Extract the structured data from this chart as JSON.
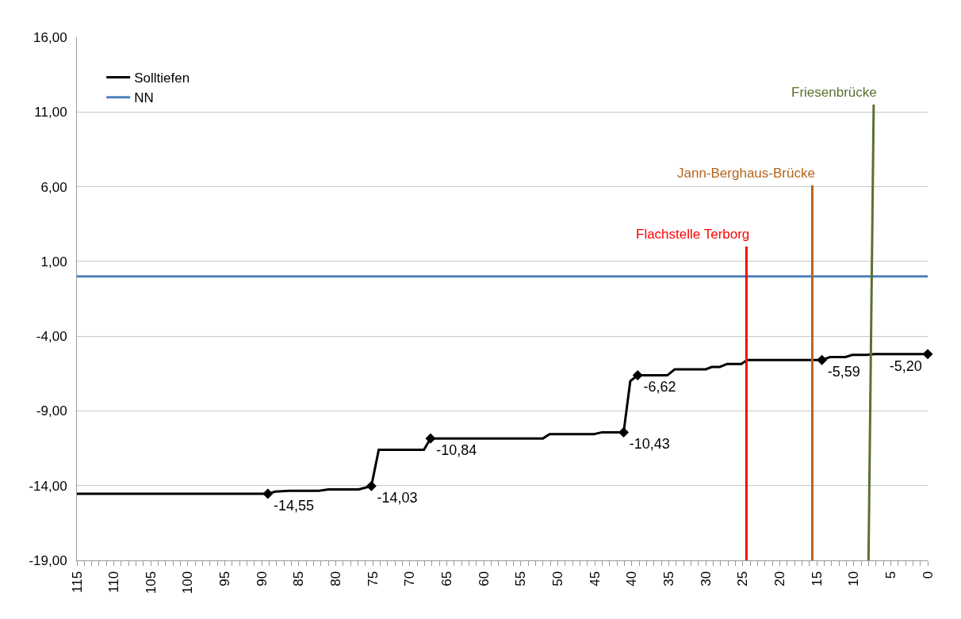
{
  "chart_data": {
    "type": "line",
    "legend": "top left",
    "grid": "y",
    "line_style": "solid",
    "x": [
      115,
      89.2,
      88.2,
      86.3,
      82.3,
      81,
      76.9,
      75.2,
      74.2,
      68.1,
      67.2,
      52,
      51.1,
      45.1,
      44,
      41.1,
      40.2,
      39.2,
      35.2,
      34.2,
      30,
      29.2,
      28.1,
      27.1,
      25.2,
      24.4,
      14.3,
      13.2,
      11.1,
      10.2,
      8.3,
      7.2,
      0
    ],
    "xlim": [
      115,
      0
    ],
    "xticks": [
      0,
      {
        "value": 1,
        "label": null
      },
      {
        "value": 2,
        "label": null
      },
      {
        "value": 3,
        "label": null
      },
      {
        "value": 4,
        "label": null
      },
      5,
      {
        "value": 6,
        "label": null
      },
      {
        "value": 7,
        "label": null
      },
      {
        "value": 8,
        "label": null
      },
      {
        "value": 9,
        "label": null
      },
      10,
      {
        "value": 11,
        "label": null
      },
      {
        "value": 12,
        "label": null
      },
      {
        "value": 13,
        "label": null
      },
      {
        "value": 14,
        "label": null
      },
      15,
      {
        "value": 16,
        "label": null
      },
      {
        "value": 17,
        "label": null
      },
      {
        "value": 18,
        "label": null
      },
      {
        "value": 19,
        "label": null
      },
      20,
      {
        "value": 21,
        "label": null
      },
      {
        "value": 22,
        "label": null
      },
      {
        "value": 23,
        "label": null
      },
      {
        "value": 24,
        "label": null
      },
      25,
      {
        "value": 26,
        "label": null
      },
      {
        "value": 27,
        "label": null
      },
      {
        "value": 28,
        "label": null
      },
      {
        "value": 29,
        "label": null
      },
      30,
      {
        "value": 31,
        "label": null
      },
      {
        "value": 32,
        "label": null
      },
      {
        "value": 33,
        "label": null
      },
      {
        "value": 34,
        "label": null
      },
      35,
      {
        "value": 36,
        "label": null
      },
      {
        "value": 37,
        "label": null
      },
      {
        "value": 38,
        "label": null
      },
      {
        "value": 39,
        "label": null
      },
      40,
      {
        "value": 41,
        "label": null
      },
      {
        "value": 42,
        "label": null
      },
      {
        "value": 43,
        "label": null
      },
      {
        "value": 44,
        "label": null
      },
      45,
      {
        "value": 46,
        "label": null
      },
      {
        "value": 47,
        "label": null
      },
      {
        "value": 48,
        "label": null
      },
      {
        "value": 49,
        "label": null
      },
      50,
      {
        "value": 51,
        "label": null
      },
      {
        "value": 52,
        "label": null
      },
      {
        "value": 53,
        "label": null
      },
      {
        "value": 54,
        "label": null
      },
      55,
      {
        "value": 56,
        "label": null
      },
      {
        "value": 57,
        "label": null
      },
      {
        "value": 58,
        "label": null
      },
      {
        "value": 59,
        "label": null
      },
      60,
      {
        "value": 61,
        "label": null
      },
      {
        "value": 62,
        "label": null
      },
      {
        "value": 63,
        "label": null
      },
      {
        "value": 64,
        "label": null
      },
      65,
      {
        "value": 66,
        "label": null
      },
      {
        "value": 67,
        "label": null
      },
      {
        "value": 68,
        "label": null
      },
      {
        "value": 69,
        "label": null
      },
      70,
      {
        "value": 71,
        "label": null
      },
      {
        "value": 72,
        "label": null
      },
      {
        "value": 73,
        "label": null
      },
      {
        "value": 74,
        "label": null
      },
      75,
      {
        "value": 76,
        "label": null
      },
      {
        "value": 77,
        "label": null
      },
      {
        "value": 78,
        "label": null
      },
      {
        "value": 79,
        "label": null
      },
      80,
      {
        "value": 81,
        "label": null
      },
      {
        "value": 82,
        "label": null
      },
      {
        "value": 83,
        "label": null
      },
      {
        "value": 84,
        "label": null
      },
      85,
      {
        "value": 86,
        "label": null
      },
      {
        "value": 87,
        "label": null
      },
      {
        "value": 88,
        "label": null
      },
      {
        "value": 89,
        "label": null
      },
      90,
      {
        "value": 91,
        "label": null
      },
      {
        "value": 92,
        "label": null
      },
      {
        "value": 93,
        "label": null
      },
      {
        "value": 94,
        "label": null
      },
      95,
      {
        "value": 96,
        "label": null
      },
      {
        "value": 97,
        "label": null
      },
      {
        "value": 98,
        "label": null
      },
      {
        "value": 99,
        "label": null
      },
      100,
      {
        "value": 101,
        "label": null
      },
      {
        "value": 102,
        "label": null
      },
      {
        "value": 103,
        "label": null
      },
      {
        "value": 104,
        "label": null
      },
      105,
      {
        "value": 106,
        "label": null
      },
      {
        "value": 107,
        "label": null
      },
      {
        "value": 108,
        "label": null
      },
      {
        "value": 109,
        "label": null
      },
      110,
      {
        "value": 111,
        "label": null
      },
      {
        "value": 112,
        "label": null
      },
      {
        "value": 113,
        "label": null
      },
      {
        "value": 114,
        "label": null
      },
      115
    ],
    "ylim": [
      -19,
      16
    ],
    "yticks": [
      {
        "value": -19,
        "label": "-19,00"
      },
      {
        "value": -14,
        "label": "-14,00"
      },
      {
        "value": -9,
        "label": "-9,00"
      },
      {
        "value": -4,
        "label": "-4,00"
      },
      {
        "value": 1,
        "label": "1,00"
      },
      {
        "value": 6,
        "label": "6,00"
      },
      {
        "value": 11,
        "label": "11,00"
      },
      {
        "value": 16,
        "label": "16,00"
      }
    ],
    "series": [
      {
        "name": "Solltiefen",
        "color": "#000000",
        "marker": "none",
        "values": [
          -14.55,
          -14.55,
          -14.4,
          -14.35,
          -14.35,
          -14.25,
          -14.25,
          -14.03,
          -11.6,
          -11.6,
          -10.84,
          -10.84,
          -10.55,
          -10.55,
          -10.43,
          -10.43,
          -7,
          -6.62,
          -6.62,
          -6.22,
          -6.22,
          -6.06,
          -6.06,
          -5.86,
          -5.86,
          -5.59,
          -5.59,
          -5.4,
          -5.4,
          -5.25,
          -5.25,
          -5.2,
          -5.2
        ]
      },
      {
        "name": "NN",
        "color": "#4f81bd",
        "marker": "none",
        "values": [
          0,
          0,
          0,
          0,
          0,
          0,
          0,
          0,
          0,
          0,
          0,
          0,
          0,
          0,
          0,
          0,
          0,
          0,
          0,
          0,
          0,
          0,
          0,
          0,
          0,
          0,
          0,
          0,
          0,
          0,
          0,
          0,
          0
        ]
      },
      {
        "type": "scatter",
        "color": "#000000",
        "marker": "diamond",
        "x": [
          89.2,
          75.2,
          67.2,
          41.1,
          39.2,
          14.3,
          0
        ],
        "values": [
          -14.55,
          -14.03,
          -10.84,
          -10.43,
          -6.62,
          -5.59,
          -5.2
        ],
        "value_labels": [
          "-14,55",
          "-14,03",
          "-10,84",
          "-10,43",
          "-6,62",
          "-5,59",
          "-5,20"
        ]
      },
      {
        "name": "Flachstelle Terborg",
        "color": "#ff0000",
        "marker": "none",
        "x": [
          24.5,
          24.5
        ],
        "values": [
          -19,
          2
        ]
      },
      {
        "name": "Jann-Berghaus-Brücke",
        "color": "#b5651d",
        "marker": "none",
        "x": [
          15.6,
          15.6
        ],
        "values": [
          -19,
          6.1
        ]
      },
      {
        "name": "Friesenbrücke",
        "color": "#5a7132",
        "marker": "none",
        "x": [
          8,
          7.3
        ],
        "values": [
          -19,
          11.5
        ]
      }
    ]
  }
}
